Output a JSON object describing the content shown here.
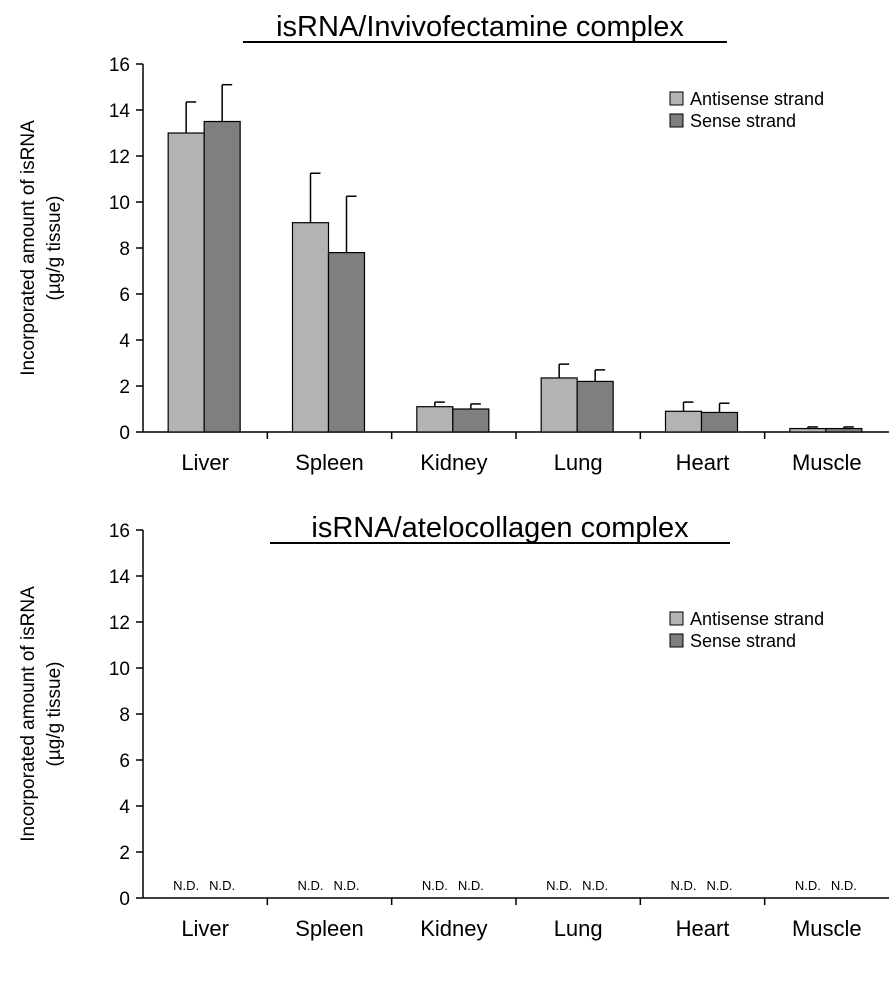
{
  "chart_data": [
    {
      "type": "bar",
      "title": "isRNA/Invivofectamine complex",
      "ylabel_line1": "Incorporated amount of isRNA",
      "ylabel_line2": "(µg/g tissue)",
      "xlabel": "",
      "ylim": [
        0,
        16
      ],
      "yticks": [
        0,
        2,
        4,
        6,
        8,
        10,
        12,
        14,
        16
      ],
      "grid": false,
      "legend_position": "top-right",
      "categories": [
        "Liver",
        "Spleen",
        "Kidney",
        "Lung",
        "Heart",
        "Muscle"
      ],
      "series": [
        {
          "name": "Antisense strand",
          "color": "#b3b3b3",
          "values": [
            13.0,
            9.1,
            1.1,
            2.35,
            0.9,
            0.15
          ],
          "errors": [
            1.35,
            2.15,
            0.2,
            0.6,
            0.4,
            0.07
          ]
        },
        {
          "name": "Sense strand",
          "color": "#7f7f7f",
          "values": [
            13.5,
            7.8,
            1.0,
            2.2,
            0.85,
            0.15
          ],
          "errors": [
            1.6,
            2.45,
            0.22,
            0.5,
            0.4,
            0.07
          ]
        }
      ]
    },
    {
      "type": "bar",
      "title": "isRNA/atelocollagen complex",
      "ylabel_line1": "Incorporated amount of isRNA",
      "ylabel_line2": "(µg/g tissue)",
      "xlabel": "",
      "ylim": [
        0,
        16
      ],
      "yticks": [
        0,
        2,
        4,
        6,
        8,
        10,
        12,
        14,
        16
      ],
      "grid": false,
      "legend_position": "top-right",
      "categories": [
        "Liver",
        "Spleen",
        "Kidney",
        "Lung",
        "Heart",
        "Muscle"
      ],
      "series": [
        {
          "name": "Antisense strand",
          "color": "#b3b3b3",
          "values": [
            "N.D.",
            "N.D.",
            "N.D.",
            "N.D.",
            "N.D.",
            "N.D."
          ]
        },
        {
          "name": "Sense strand",
          "color": "#7f7f7f",
          "values": [
            "N.D.",
            "N.D.",
            "N.D.",
            "N.D.",
            "N.D.",
            "N.D."
          ]
        }
      ]
    }
  ]
}
